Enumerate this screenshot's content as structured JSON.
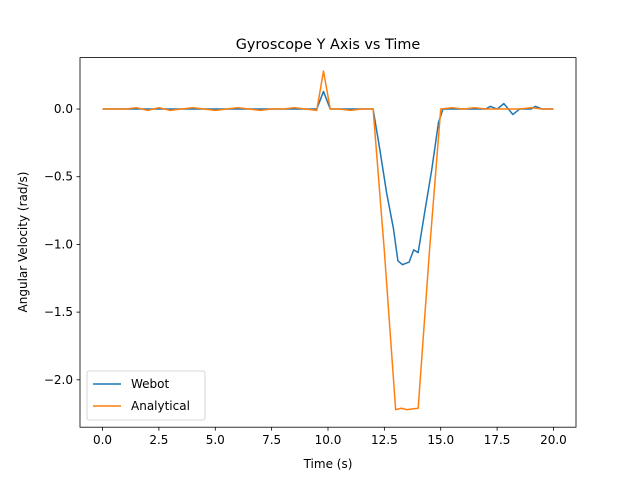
{
  "chart_data": {
    "type": "line",
    "title": "Gyroscope Y Axis vs Time",
    "xlabel": "Time (s)",
    "ylabel": "Angular Velocity (rad/s)",
    "xlim": [
      -1.0,
      21.0
    ],
    "ylim": [
      -2.35,
      0.38
    ],
    "xticks": [
      0.0,
      2.5,
      5.0,
      7.5,
      10.0,
      12.5,
      15.0,
      17.5,
      20.0
    ],
    "xtick_labels": [
      "0.0",
      "2.5",
      "5.0",
      "7.5",
      "10.0",
      "12.5",
      "15.0",
      "17.5",
      "20.0"
    ],
    "yticks": [
      0.0,
      -0.5,
      -1.0,
      -1.5,
      -2.0
    ],
    "ytick_labels": [
      "0.0",
      "−0.5",
      "−1.0",
      "−1.5",
      "−2.0"
    ],
    "grid": false,
    "legend_position": "lower-left",
    "series": [
      {
        "name": "Webot",
        "color": "#1f77b4",
        "x": [
          0.0,
          0.5,
          1.0,
          1.5,
          2.0,
          2.5,
          3.0,
          3.5,
          4.0,
          4.5,
          5.0,
          5.5,
          6.0,
          6.5,
          7.0,
          7.5,
          8.0,
          8.5,
          9.0,
          9.5,
          9.8,
          10.1,
          10.5,
          11.0,
          11.5,
          12.0,
          12.3,
          12.6,
          12.9,
          13.1,
          13.3,
          13.6,
          13.8,
          14.0,
          14.3,
          14.6,
          14.9,
          15.1,
          15.5,
          16.0,
          16.5,
          17.0,
          17.2,
          17.5,
          17.8,
          18.0,
          18.2,
          18.5,
          19.0,
          19.2,
          19.5,
          20.0
        ],
        "y": [
          0.0,
          0.0,
          0.0,
          0.0,
          0.0,
          0.0,
          0.0,
          0.0,
          0.0,
          0.0,
          0.0,
          0.0,
          0.0,
          0.0,
          0.0,
          0.0,
          0.0,
          0.0,
          0.0,
          0.0,
          0.13,
          0.0,
          0.0,
          0.0,
          0.0,
          0.0,
          -0.3,
          -0.62,
          -0.88,
          -1.12,
          -1.15,
          -1.13,
          -1.04,
          -1.06,
          -0.75,
          -0.45,
          -0.1,
          0.0,
          0.0,
          0.0,
          0.0,
          0.0,
          0.02,
          0.0,
          0.04,
          0.0,
          -0.04,
          0.0,
          0.0,
          0.02,
          0.0,
          0.0
        ]
      },
      {
        "name": "Analytical",
        "color": "#ff7f0e",
        "x": [
          0.0,
          0.5,
          1.0,
          1.5,
          2.0,
          2.5,
          3.0,
          3.5,
          4.0,
          4.5,
          5.0,
          5.5,
          6.0,
          6.5,
          7.0,
          7.5,
          8.0,
          8.5,
          9.0,
          9.5,
          9.8,
          10.1,
          10.5,
          11.0,
          11.5,
          12.0,
          12.5,
          13.0,
          13.25,
          13.5,
          14.0,
          14.5,
          15.0,
          15.5,
          16.0,
          16.5,
          17.0,
          17.5,
          18.0,
          18.5,
          19.0,
          19.5,
          20.0
        ],
        "y": [
          0.0,
          0.0,
          0.0,
          0.01,
          -0.01,
          0.01,
          -0.01,
          0.0,
          0.01,
          0.0,
          -0.01,
          0.0,
          0.01,
          0.0,
          -0.01,
          0.0,
          0.0,
          0.01,
          0.0,
          -0.01,
          0.28,
          0.0,
          0.0,
          -0.01,
          0.0,
          0.0,
          -1.05,
          -2.22,
          -2.21,
          -2.22,
          -2.21,
          -1.05,
          0.0,
          0.01,
          0.0,
          0.01,
          0.0,
          0.0,
          0.0,
          0.0,
          0.01,
          0.0,
          0.0
        ]
      }
    ]
  }
}
